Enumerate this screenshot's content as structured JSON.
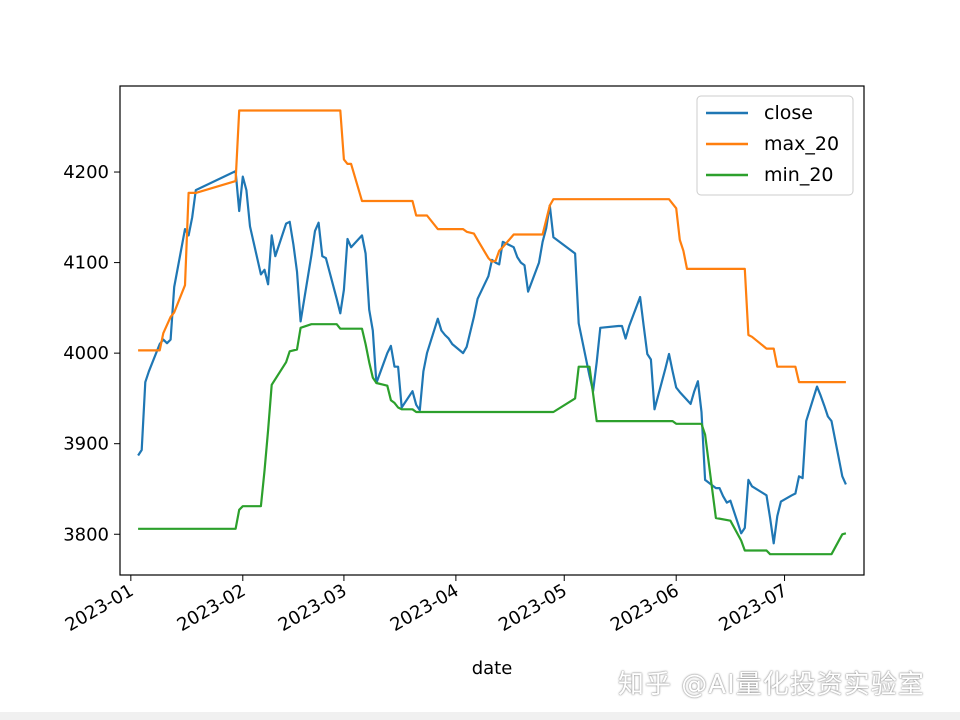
{
  "watermark": "知乎 @AI量化投资实验室",
  "chart_data": {
    "type": "line",
    "title": "",
    "xlabel": "date",
    "ylabel": "",
    "xlim": [
      "2022-12-29",
      "2023-07-23"
    ],
    "ylim": [
      3755,
      4295
    ],
    "x_ticks": [
      "2023-01-01",
      "2023-02-01",
      "2023-03-01",
      "2023-04-01",
      "2023-05-01",
      "2023-06-01",
      "2023-07-01"
    ],
    "x_tick_labels": [
      "2023-01",
      "2023-02",
      "2023-03",
      "2023-04",
      "2023-05",
      "2023-06",
      "2023-07"
    ],
    "y_ticks": [
      3800,
      3900,
      4000,
      4100,
      4200
    ],
    "y_tick_labels": [
      "3800",
      "3900",
      "4000",
      "4100",
      "4200"
    ],
    "grid": false,
    "legend_position": "upper-right",
    "series": [
      {
        "name": "close",
        "color": "#1f77b4",
        "points": [
          [
            "2023-01-03",
            3887
          ],
          [
            "2023-01-04",
            3893
          ],
          [
            "2023-01-05",
            3968
          ],
          [
            "2023-01-06",
            3980
          ],
          [
            "2023-01-09",
            4010
          ],
          [
            "2023-01-10",
            4015
          ],
          [
            "2023-01-11",
            4011
          ],
          [
            "2023-01-12",
            4015
          ],
          [
            "2023-01-13",
            4073
          ],
          [
            "2023-01-16",
            4137
          ],
          [
            "2023-01-17",
            4130
          ],
          [
            "2023-01-18",
            4150
          ],
          [
            "2023-01-19",
            4180
          ],
          [
            "2023-01-30",
            4201
          ],
          [
            "2023-01-31",
            4157
          ],
          [
            "2023-02-01",
            4195
          ],
          [
            "2023-02-02",
            4180
          ],
          [
            "2023-02-03",
            4140
          ],
          [
            "2023-02-06",
            4087
          ],
          [
            "2023-02-07",
            4092
          ],
          [
            "2023-02-08",
            4076
          ],
          [
            "2023-02-09",
            4130
          ],
          [
            "2023-02-10",
            4107
          ],
          [
            "2023-02-13",
            4143
          ],
          [
            "2023-02-14",
            4145
          ],
          [
            "2023-02-15",
            4120
          ],
          [
            "2023-02-16",
            4090
          ],
          [
            "2023-02-17",
            4035
          ],
          [
            "2023-02-20",
            4108
          ],
          [
            "2023-02-21",
            4135
          ],
          [
            "2023-02-22",
            4144
          ],
          [
            "2023-02-23",
            4107
          ],
          [
            "2023-02-24",
            4105
          ],
          [
            "2023-02-27",
            4060
          ],
          [
            "2023-02-28",
            4044
          ],
          [
            "2023-03-01",
            4070
          ],
          [
            "2023-03-02",
            4126
          ],
          [
            "2023-03-03",
            4117
          ],
          [
            "2023-03-06",
            4130
          ],
          [
            "2023-03-07",
            4110
          ],
          [
            "2023-03-08",
            4048
          ],
          [
            "2023-03-09",
            4025
          ],
          [
            "2023-03-10",
            3967
          ],
          [
            "2023-03-13",
            4000
          ],
          [
            "2023-03-14",
            4008
          ],
          [
            "2023-03-15",
            3985
          ],
          [
            "2023-03-16",
            3985
          ],
          [
            "2023-03-17",
            3940
          ],
          [
            "2023-03-20",
            3958
          ],
          [
            "2023-03-21",
            3943
          ],
          [
            "2023-03-22",
            3937
          ],
          [
            "2023-03-23",
            3980
          ],
          [
            "2023-03-24",
            4000
          ],
          [
            "2023-03-27",
            4038
          ],
          [
            "2023-03-28",
            4025
          ],
          [
            "2023-03-29",
            4020
          ],
          [
            "2023-03-30",
            4016
          ],
          [
            "2023-03-31",
            4010
          ],
          [
            "2023-04-03",
            4000
          ],
          [
            "2023-04-04",
            4007
          ],
          [
            "2023-04-06",
            4040
          ],
          [
            "2023-04-07",
            4060
          ],
          [
            "2023-04-10",
            4085
          ],
          [
            "2023-04-11",
            4103
          ],
          [
            "2023-04-12",
            4100
          ],
          [
            "2023-04-13",
            4098
          ],
          [
            "2023-04-14",
            4123
          ],
          [
            "2023-04-17",
            4117
          ],
          [
            "2023-04-18",
            4106
          ],
          [
            "2023-04-19",
            4100
          ],
          [
            "2023-04-20",
            4097
          ],
          [
            "2023-04-21",
            4068
          ],
          [
            "2023-04-24",
            4100
          ],
          [
            "2023-04-25",
            4123
          ],
          [
            "2023-04-26",
            4138
          ],
          [
            "2023-04-27",
            4163
          ],
          [
            "2023-04-28",
            4128
          ],
          [
            "2023-05-04",
            4110
          ],
          [
            "2023-05-05",
            4033
          ],
          [
            "2023-05-08",
            3975
          ],
          [
            "2023-05-09",
            3958
          ],
          [
            "2023-05-10",
            3990
          ],
          [
            "2023-05-11",
            4028
          ],
          [
            "2023-05-16",
            4030
          ],
          [
            "2023-05-17",
            4030
          ],
          [
            "2023-05-18",
            4016
          ],
          [
            "2023-05-19",
            4030
          ],
          [
            "2023-05-22",
            4062
          ],
          [
            "2023-05-23",
            4030
          ],
          [
            "2023-05-24",
            3999
          ],
          [
            "2023-05-25",
            3993
          ],
          [
            "2023-05-26",
            3938
          ],
          [
            "2023-05-29",
            3983
          ],
          [
            "2023-05-30",
            3999
          ],
          [
            "2023-05-31",
            3980
          ],
          [
            "2023-06-01",
            3962
          ],
          [
            "2023-06-02",
            3957
          ],
          [
            "2023-06-05",
            3944
          ],
          [
            "2023-06-06",
            3958
          ],
          [
            "2023-06-07",
            3969
          ],
          [
            "2023-06-08",
            3935
          ],
          [
            "2023-06-09",
            3860
          ],
          [
            "2023-06-12",
            3851
          ],
          [
            "2023-06-13",
            3851
          ],
          [
            "2023-06-14",
            3842
          ],
          [
            "2023-06-15",
            3835
          ],
          [
            "2023-06-16",
            3837
          ],
          [
            "2023-06-19",
            3801
          ],
          [
            "2023-06-20",
            3807
          ],
          [
            "2023-06-21",
            3860
          ],
          [
            "2023-06-22",
            3853
          ],
          [
            "2023-06-26",
            3843
          ],
          [
            "2023-06-27",
            3818
          ],
          [
            "2023-06-28",
            3790
          ],
          [
            "2023-06-29",
            3820
          ],
          [
            "2023-06-30",
            3836
          ],
          [
            "2023-07-03",
            3843
          ],
          [
            "2023-07-04",
            3845
          ],
          [
            "2023-07-05",
            3864
          ],
          [
            "2023-07-06",
            3862
          ],
          [
            "2023-07-07",
            3925
          ],
          [
            "2023-07-10",
            3963
          ],
          [
            "2023-07-11",
            3953
          ],
          [
            "2023-07-12",
            3942
          ],
          [
            "2023-07-13",
            3930
          ],
          [
            "2023-07-14",
            3925
          ],
          [
            "2023-07-17",
            3864
          ],
          [
            "2023-07-18",
            3855
          ]
        ]
      },
      {
        "name": "max_20",
        "color": "#ff7f0e",
        "points": [
          [
            "2023-01-03",
            4003
          ],
          [
            "2023-01-04",
            4003
          ],
          [
            "2023-01-09",
            4003
          ],
          [
            "2023-01-10",
            4022
          ],
          [
            "2023-01-12",
            4040
          ],
          [
            "2023-01-13",
            4045
          ],
          [
            "2023-01-16",
            4075
          ],
          [
            "2023-01-17",
            4177
          ],
          [
            "2023-01-19",
            4177
          ],
          [
            "2023-01-30",
            4190
          ],
          [
            "2023-01-31",
            4268
          ],
          [
            "2023-02-28",
            4268
          ],
          [
            "2023-03-01",
            4214
          ],
          [
            "2023-03-02",
            4209
          ],
          [
            "2023-03-03",
            4209
          ],
          [
            "2023-03-06",
            4168
          ],
          [
            "2023-03-20",
            4168
          ],
          [
            "2023-03-21",
            4152
          ],
          [
            "2023-03-24",
            4152
          ],
          [
            "2023-03-27",
            4137
          ],
          [
            "2023-04-03",
            4137
          ],
          [
            "2023-04-04",
            4134
          ],
          [
            "2023-04-06",
            4132
          ],
          [
            "2023-04-07",
            4125
          ],
          [
            "2023-04-10",
            4105
          ],
          [
            "2023-04-11",
            4101
          ],
          [
            "2023-04-12",
            4102
          ],
          [
            "2023-04-13",
            4113
          ],
          [
            "2023-04-14",
            4117
          ],
          [
            "2023-04-17",
            4131
          ],
          [
            "2023-04-24",
            4131
          ],
          [
            "2023-04-25",
            4131
          ],
          [
            "2023-04-27",
            4163
          ],
          [
            "2023-04-28",
            4170
          ],
          [
            "2023-05-30",
            4170
          ],
          [
            "2023-06-01",
            4160
          ],
          [
            "2023-06-02",
            4125
          ],
          [
            "2023-06-03",
            4113
          ],
          [
            "2023-06-04",
            4093
          ],
          [
            "2023-06-05",
            4093
          ],
          [
            "2023-06-20",
            4093
          ],
          [
            "2023-06-21",
            4020
          ],
          [
            "2023-06-22",
            4018
          ],
          [
            "2023-06-26",
            4005
          ],
          [
            "2023-06-28",
            4005
          ],
          [
            "2023-06-29",
            3985
          ],
          [
            "2023-07-04",
            3985
          ],
          [
            "2023-07-05",
            3968
          ],
          [
            "2023-07-18",
            3968
          ]
        ]
      },
      {
        "name": "min_20",
        "color": "#2ca02c",
        "points": [
          [
            "2023-01-03",
            3806
          ],
          [
            "2023-01-30",
            3806
          ],
          [
            "2023-01-31",
            3827
          ],
          [
            "2023-02-01",
            3831
          ],
          [
            "2023-02-06",
            3831
          ],
          [
            "2023-02-07",
            3870
          ],
          [
            "2023-02-08",
            3915
          ],
          [
            "2023-02-09",
            3965
          ],
          [
            "2023-02-13",
            3990
          ],
          [
            "2023-02-14",
            4002
          ],
          [
            "2023-02-16",
            4004
          ],
          [
            "2023-02-17",
            4028
          ],
          [
            "2023-02-20",
            4032
          ],
          [
            "2023-02-27",
            4032
          ],
          [
            "2023-02-28",
            4027
          ],
          [
            "2023-03-06",
            4027
          ],
          [
            "2023-03-07",
            4010
          ],
          [
            "2023-03-08",
            3990
          ],
          [
            "2023-03-09",
            3973
          ],
          [
            "2023-03-10",
            3967
          ],
          [
            "2023-03-13",
            3964
          ],
          [
            "2023-03-14",
            3948
          ],
          [
            "2023-03-15",
            3945
          ],
          [
            "2023-03-16",
            3940
          ],
          [
            "2023-03-17",
            3938
          ],
          [
            "2023-03-20",
            3938
          ],
          [
            "2023-03-21",
            3935
          ],
          [
            "2023-04-17",
            3935
          ],
          [
            "2023-04-28",
            3935
          ],
          [
            "2023-05-04",
            3950
          ],
          [
            "2023-05-05",
            3985
          ],
          [
            "2023-05-08",
            3985
          ],
          [
            "2023-05-09",
            3955
          ],
          [
            "2023-05-10",
            3925
          ],
          [
            "2023-05-31",
            3925
          ],
          [
            "2023-06-01",
            3922
          ],
          [
            "2023-06-08",
            3922
          ],
          [
            "2023-06-09",
            3910
          ],
          [
            "2023-06-12",
            3818
          ],
          [
            "2023-06-16",
            3815
          ],
          [
            "2023-06-19",
            3793
          ],
          [
            "2023-06-20",
            3782
          ],
          [
            "2023-06-26",
            3782
          ],
          [
            "2023-06-27",
            3778
          ],
          [
            "2023-07-14",
            3778
          ],
          [
            "2023-07-17",
            3800
          ],
          [
            "2023-07-18",
            3801
          ]
        ]
      }
    ]
  }
}
